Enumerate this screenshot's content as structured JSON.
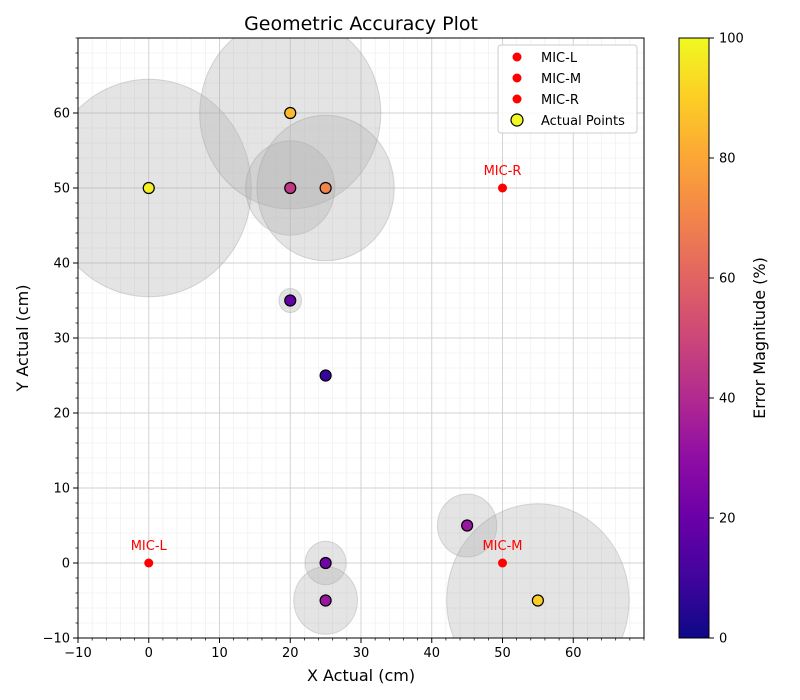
{
  "chart_data": {
    "type": "scatter",
    "title": "Geometric Accuracy Plot",
    "xlabel": "X Actual (cm)",
    "ylabel": "Y Actual (cm)",
    "xlim": [
      -10,
      70
    ],
    "ylim": [
      -10,
      70
    ],
    "x_ticks": [
      -10,
      0,
      10,
      20,
      30,
      40,
      50,
      60
    ],
    "y_ticks": [
      -10,
      0,
      10,
      20,
      30,
      40,
      50,
      60
    ],
    "grid": "major and minor",
    "legend_position": "top-right",
    "legend": [
      {
        "label": "MIC-L",
        "marker": "red-dot"
      },
      {
        "label": "MIC-M",
        "marker": "red-dot"
      },
      {
        "label": "MIC-R",
        "marker": "red-dot"
      },
      {
        "label": "Actual Points",
        "marker": "circle-yellow-outlined"
      }
    ],
    "microphones": [
      {
        "name": "MIC-L",
        "x": 0,
        "y": 0,
        "label": "MIC-L"
      },
      {
        "name": "MIC-M",
        "x": 50,
        "y": 0,
        "label": "MIC-M"
      },
      {
        "name": "MIC-R",
        "x": 50,
        "y": 50,
        "label": "MIC-R"
      }
    ],
    "mic_color": "#ff0000",
    "points": [
      {
        "x": 0,
        "y": 50,
        "error_pct": 98,
        "error_radius": 14.5
      },
      {
        "x": 20,
        "y": 60,
        "error_pct": 85,
        "error_radius": 12.8
      },
      {
        "x": 20,
        "y": 50,
        "error_pct": 45,
        "error_radius": 6.3
      },
      {
        "x": 25,
        "y": 50,
        "error_pct": 70,
        "error_radius": 9.7
      },
      {
        "x": 20,
        "y": 35,
        "error_pct": 18,
        "error_radius": 1.6
      },
      {
        "x": 25,
        "y": 25,
        "error_pct": 8,
        "error_radius": 0
      },
      {
        "x": 45,
        "y": 5,
        "error_pct": 33,
        "error_radius": 4.2
      },
      {
        "x": 25,
        "y": 0,
        "error_pct": 22,
        "error_radius": 2.9
      },
      {
        "x": 25,
        "y": -5,
        "error_pct": 33,
        "error_radius": 4.5
      },
      {
        "x": 55,
        "y": -5,
        "error_pct": 90,
        "error_radius": 12.9
      }
    ],
    "colorbar": {
      "label": "Error Magnitude (%)",
      "colormap": "plasma",
      "range": [
        0,
        100
      ],
      "ticks": [
        0,
        20,
        40,
        60,
        80,
        100
      ]
    },
    "error_circle_color": "#b3b3b3"
  }
}
